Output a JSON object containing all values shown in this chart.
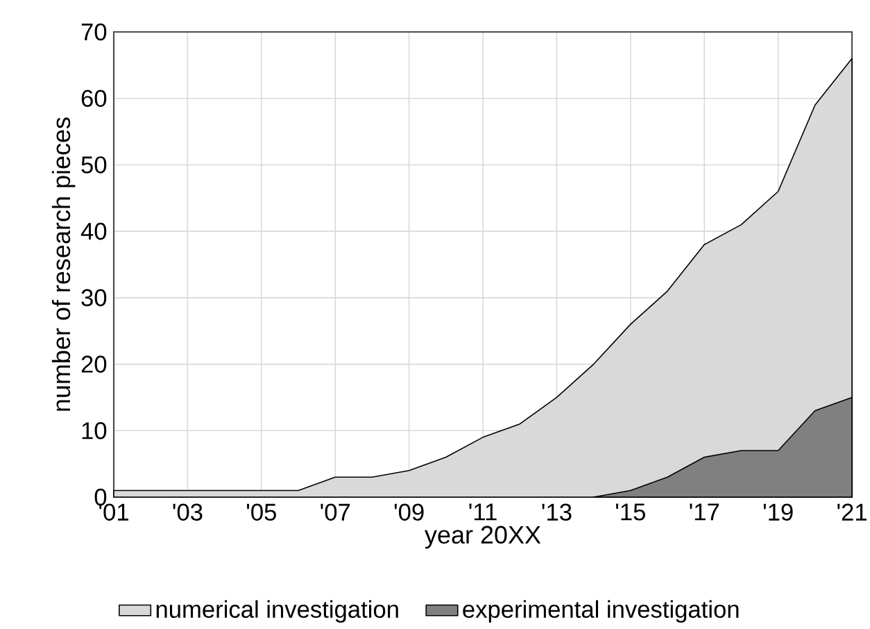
{
  "chart_data": {
    "type": "area",
    "xlabel": "year 20XX",
    "ylabel": "number of research pieces",
    "categories": [
      "'01",
      null,
      "'03",
      null,
      "'05",
      null,
      "'07",
      null,
      "'09",
      null,
      "'11",
      null,
      "'13",
      null,
      "'15",
      null,
      "'17",
      null,
      "'19",
      null,
      "'21"
    ],
    "series": [
      {
        "name": "numerical investigation",
        "color": "#d9d9d9",
        "values": [
          1,
          1,
          1,
          1,
          1,
          1,
          3,
          3,
          4,
          6,
          9,
          11,
          15,
          20,
          26,
          31,
          38,
          41,
          46,
          59,
          66
        ]
      },
      {
        "name": "experimental investigation",
        "color": "#808080",
        "values": [
          null,
          null,
          null,
          null,
          null,
          null,
          null,
          null,
          null,
          null,
          null,
          null,
          null,
          0,
          1,
          3,
          6,
          7,
          7,
          13,
          15
        ]
      }
    ],
    "ylim": [
      0,
      70
    ],
    "yticks": [
      0,
      10,
      20,
      30,
      40,
      50,
      60,
      70
    ],
    "grid": true,
    "legend": "bottom"
  }
}
